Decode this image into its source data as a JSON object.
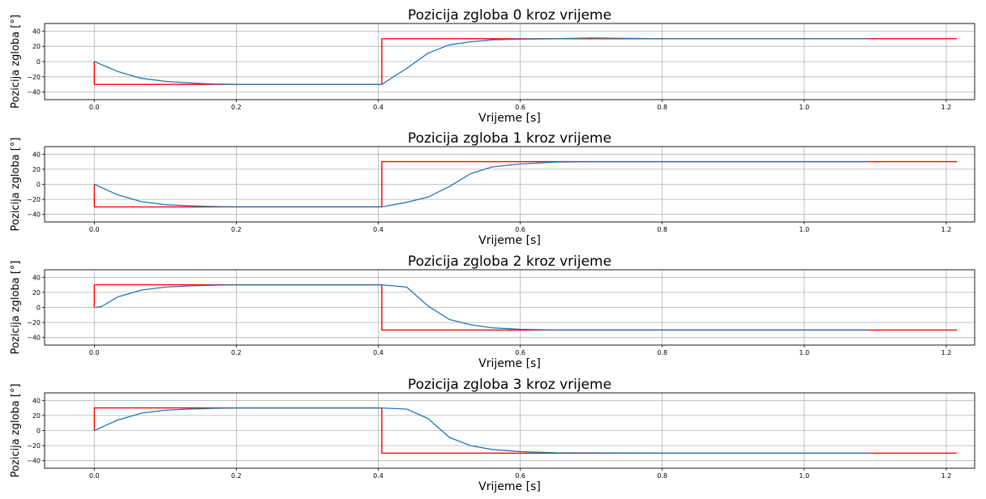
{
  "colors": {
    "reference": "#ff0000",
    "response": "#1f77b4",
    "grid": "#b0b0b0"
  },
  "chart_data": [
    {
      "type": "line",
      "title": "Pozicija zgloba 0 kroz vrijeme",
      "xlabel": "Vrijeme [s]",
      "ylabel": "Pozicija zgloba [°]",
      "xlim": [
        -0.07,
        1.24
      ],
      "ylim": [
        -50,
        50
      ],
      "xticks": [
        "0.0",
        "0.2",
        "0.4",
        "0.6",
        "0.8",
        "1.0",
        "1.2"
      ],
      "yticks": [
        "40",
        "20",
        "0",
        "−20",
        "−40"
      ],
      "grid": true,
      "series": [
        {
          "color": "#ff0000",
          "x": [
            0.0,
            0.0,
            0.405,
            0.405,
            1.215
          ],
          "y": [
            0,
            -30,
            -30,
            30,
            30
          ]
        },
        {
          "color": "#1f77b4",
          "x": [
            0.0,
            0.033,
            0.066,
            0.1,
            0.133,
            0.166,
            0.2,
            0.3,
            0.405,
            0.44,
            0.47,
            0.5,
            0.53,
            0.56,
            0.6,
            0.65,
            0.7,
            0.8,
            1.0,
            1.09
          ],
          "y": [
            0,
            -13,
            -22,
            -26,
            -28,
            -29.5,
            -30,
            -30,
            -30,
            -9,
            11,
            22,
            26,
            28.5,
            29.5,
            30,
            31,
            30,
            30,
            30
          ]
        }
      ]
    },
    {
      "type": "line",
      "title": "Pozicija zgloba 1 kroz vrijeme",
      "xlabel": "Vrijeme [s]",
      "ylabel": "Pozicija zgloba [°]",
      "xlim": [
        -0.07,
        1.24
      ],
      "ylim": [
        -50,
        50
      ],
      "xticks": [
        "0.0",
        "0.2",
        "0.4",
        "0.6",
        "0.8",
        "1.0",
        "1.2"
      ],
      "yticks": [
        "40",
        "20",
        "0",
        "−20",
        "−40"
      ],
      "grid": true,
      "series": [
        {
          "color": "#ff0000",
          "x": [
            0.0,
            0.0,
            0.405,
            0.405,
            1.215
          ],
          "y": [
            0,
            -30,
            -30,
            30,
            30
          ]
        },
        {
          "color": "#1f77b4",
          "x": [
            0.0,
            0.033,
            0.066,
            0.1,
            0.133,
            0.166,
            0.2,
            0.3,
            0.405,
            0.44,
            0.47,
            0.5,
            0.53,
            0.56,
            0.6,
            0.65,
            0.7,
            0.8,
            1.0,
            1.09
          ],
          "y": [
            0,
            -14,
            -23,
            -27,
            -28.5,
            -29.5,
            -30,
            -30,
            -30,
            -24,
            -17,
            -3,
            14,
            23,
            27,
            29.5,
            30,
            30,
            30,
            30
          ]
        }
      ]
    },
    {
      "type": "line",
      "title": "Pozicija zgloba 2 kroz vrijeme",
      "xlabel": "Vrijeme [s]",
      "ylabel": "Pozicija zgloba [°]",
      "xlim": [
        -0.07,
        1.24
      ],
      "ylim": [
        -50,
        50
      ],
      "xticks": [
        "0.0",
        "0.2",
        "0.4",
        "0.6",
        "0.8",
        "1.0",
        "1.2"
      ],
      "yticks": [
        "40",
        "20",
        "0",
        "−20",
        "−40"
      ],
      "grid": true,
      "series": [
        {
          "color": "#ff0000",
          "x": [
            0.0,
            0.0,
            0.405,
            0.405,
            1.215
          ],
          "y": [
            0,
            30,
            30,
            -30,
            -30
          ]
        },
        {
          "color": "#1f77b4",
          "x": [
            0.0,
            0.01,
            0.033,
            0.066,
            0.1,
            0.133,
            0.166,
            0.2,
            0.3,
            0.405,
            0.44,
            0.47,
            0.5,
            0.53,
            0.56,
            0.6,
            0.65,
            0.8,
            1.0,
            1.09
          ],
          "y": [
            0,
            1,
            14,
            23,
            27,
            28.5,
            29.5,
            30,
            30,
            30,
            27,
            2,
            -16,
            -23,
            -27,
            -29,
            -30,
            -30,
            -30,
            -30
          ]
        }
      ]
    },
    {
      "type": "line",
      "title": "Pozicija zgloba 3 kroz vrijeme",
      "xlabel": "Vrijeme [s]",
      "ylabel": "Pozicija zgloba [°]",
      "xlim": [
        -0.07,
        1.24
      ],
      "ylim": [
        -50,
        50
      ],
      "xticks": [
        "0.0",
        "0.2",
        "0.4",
        "0.6",
        "0.8",
        "1.0",
        "1.2"
      ],
      "yticks": [
        "40",
        "20",
        "0",
        "−20",
        "−40"
      ],
      "grid": true,
      "series": [
        {
          "color": "#ff0000",
          "x": [
            0.0,
            0.0,
            0.405,
            0.405,
            1.215
          ],
          "y": [
            0,
            30,
            30,
            -30,
            -30
          ]
        },
        {
          "color": "#1f77b4",
          "x": [
            0.0,
            0.033,
            0.066,
            0.1,
            0.133,
            0.166,
            0.2,
            0.3,
            0.405,
            0.44,
            0.47,
            0.5,
            0.53,
            0.56,
            0.6,
            0.65,
            0.8,
            1.0,
            1.09
          ],
          "y": [
            0,
            14,
            23,
            27,
            28.5,
            29.5,
            30,
            30,
            30,
            28.5,
            16,
            -9,
            -20,
            -25,
            -28,
            -29.5,
            -30,
            -30,
            -30
          ]
        }
      ]
    }
  ]
}
